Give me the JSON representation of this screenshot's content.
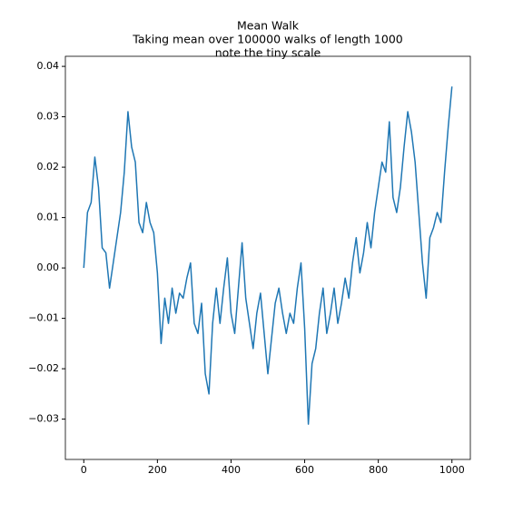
{
  "chart_data": {
    "type": "line",
    "title": [
      "Mean Walk",
      "Taking mean over 100000 walks of length 1000",
      "note the tiny scale"
    ],
    "x": [
      0,
      10,
      20,
      30,
      40,
      50,
      60,
      70,
      80,
      90,
      100,
      110,
      120,
      130,
      140,
      150,
      160,
      170,
      180,
      190,
      200,
      210,
      220,
      230,
      240,
      250,
      260,
      270,
      280,
      290,
      300,
      310,
      320,
      330,
      340,
      350,
      360,
      370,
      380,
      390,
      400,
      410,
      420,
      430,
      440,
      450,
      460,
      470,
      480,
      490,
      500,
      510,
      520,
      530,
      540,
      550,
      560,
      570,
      580,
      590,
      600,
      610,
      620,
      630,
      640,
      650,
      660,
      670,
      680,
      690,
      700,
      710,
      720,
      730,
      740,
      750,
      760,
      770,
      780,
      790,
      800,
      810,
      820,
      830,
      840,
      850,
      860,
      870,
      880,
      890,
      900,
      910,
      920,
      930,
      940,
      950,
      960,
      970,
      980,
      990,
      1000
    ],
    "values": [
      0.0,
      0.011,
      0.013,
      0.022,
      0.016,
      0.004,
      0.003,
      -0.004,
      0.001,
      0.006,
      0.011,
      0.019,
      0.031,
      0.024,
      0.021,
      0.009,
      0.007,
      0.013,
      0.009,
      0.007,
      -0.001,
      -0.015,
      -0.006,
      -0.011,
      -0.004,
      -0.009,
      -0.005,
      -0.006,
      -0.002,
      0.001,
      -0.011,
      -0.013,
      -0.007,
      -0.021,
      -0.025,
      -0.011,
      -0.004,
      -0.011,
      -0.004,
      0.002,
      -0.009,
      -0.013,
      -0.004,
      0.005,
      -0.006,
      -0.011,
      -0.016,
      -0.009,
      -0.005,
      -0.013,
      -0.021,
      -0.014,
      -0.007,
      -0.004,
      -0.009,
      -0.013,
      -0.009,
      -0.011,
      -0.004,
      0.001,
      -0.012,
      -0.031,
      -0.019,
      -0.016,
      -0.009,
      -0.004,
      -0.013,
      -0.009,
      -0.004,
      -0.011,
      -0.007,
      -0.002,
      -0.006,
      0.001,
      0.006,
      -0.001,
      0.003,
      0.009,
      0.004,
      0.011,
      0.016,
      0.021,
      0.019,
      0.029,
      0.014,
      0.011,
      0.016,
      0.024,
      0.031,
      0.027,
      0.021,
      0.011,
      0.001,
      -0.006,
      0.006,
      0.008,
      0.011,
      0.009,
      0.019,
      0.028,
      0.036
    ],
    "color": "#1f77b4",
    "xlim": [
      -50,
      1050
    ],
    "ylim": [
      -0.038,
      0.042
    ],
    "xticks": [
      0,
      200,
      400,
      600,
      800,
      1000
    ],
    "yticks": [
      {
        "value": -0.03,
        "label": "−0.03"
      },
      {
        "value": -0.02,
        "label": "−0.02"
      },
      {
        "value": -0.01,
        "label": "−0.01"
      },
      {
        "value": 0,
        "label": "0.00"
      },
      0.01,
      0.02,
      0.03,
      0.04
    ],
    "grid": false
  }
}
